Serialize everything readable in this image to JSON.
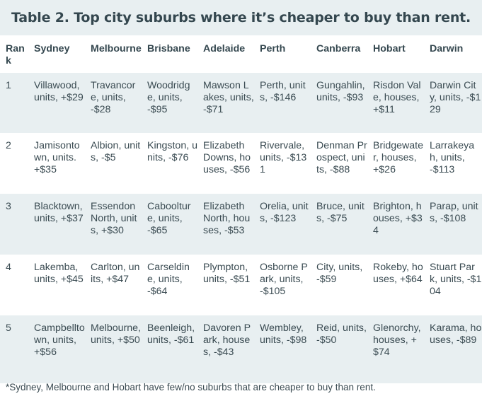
{
  "title": "Table 2. Top city suburbs where it’s cheaper to buy than rent.",
  "columns": [
    "Rank",
    "Sydney",
    "Melbourne",
    "Brisbane",
    "Adelaide",
    "Perth",
    "Canberra",
    "Hobart",
    "Darwin"
  ],
  "rows": [
    [
      "1",
      "Villawood, units, +$29",
      "Travancore, units, -$28",
      "Woodridge, units, -$95",
      "Mawson Lakes, units, -$71",
      "Perth, units, -$146",
      "Gungahlin, units, -$93",
      "Risdon Vale, houses, +$11",
      "Darwin City, units, -$129"
    ],
    [
      "2",
      "Jamisontown, units. +$35",
      "Albion, units, -$5",
      "Kingston, units, -$76",
      "Elizabeth Downs, houses, -$56",
      "Rivervale, units, -$131",
      "Denman Prospect, units, -$88",
      "Bridgewater, houses, +$26",
      "Larrakeyah, units, -$113"
    ],
    [
      "3",
      "Blacktown, units, +$37",
      "Essendon North, units, +$30",
      "Caboolture, units, -$65",
      "Elizabeth North, houses, -$53",
      "Orelia, units, -$123",
      "Bruce, units, -$75",
      "Brighton, houses, +$34",
      "Parap, units, -$108"
    ],
    [
      "4",
      "Lakemba, units, +$45",
      "Carlton, units, +$47",
      "Carseldine, units, -$64",
      "Plympton, units, -$51",
      "Osborne Park, units, -$105",
      "City, units, -$59",
      "Rokeby, houses, +$64",
      "Stuart Park, units, -$104"
    ],
    [
      "5",
      "Campbelltown, units, +$56",
      "Melbourne, units, +$50",
      "Beenleigh, units, -$61",
      "Davoren Park, houses, -$43",
      "Wembley, units, -$98",
      "Reid, units, -$50",
      "Glenorchy, houses, +$74",
      "Karama, houses, -$89"
    ]
  ],
  "footnote": "*Sydney, Melbourne and Hobart have few/no suburbs that are cheaper to buy than rent."
}
